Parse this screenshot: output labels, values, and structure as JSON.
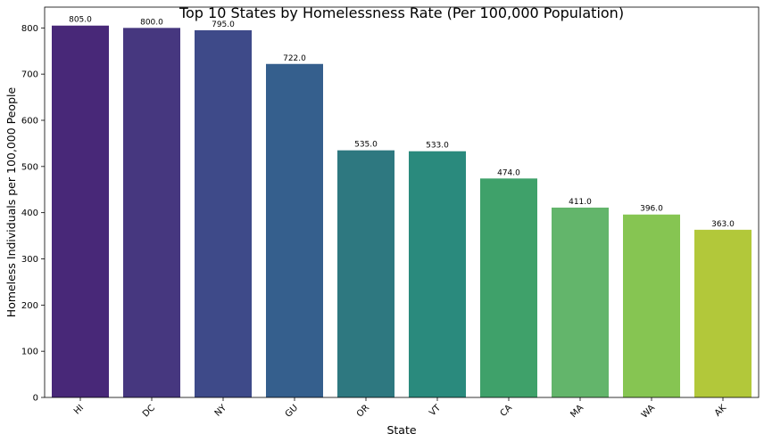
{
  "chart_data": {
    "type": "bar",
    "title": "Top 10 States by Homelessness Rate (Per 100,000 Population)",
    "xlabel": "State",
    "ylabel": "Homeless Individuals per 100,000 People",
    "categories": [
      "HI",
      "DC",
      "NY",
      "GU",
      "OR",
      "VT",
      "CA",
      "MA",
      "WA",
      "AK"
    ],
    "values": [
      805.0,
      800.0,
      795.0,
      722.0,
      535.0,
      533.0,
      474.0,
      411.0,
      396.0,
      363.0
    ],
    "data_labels": [
      "805.0",
      "800.0",
      "795.0",
      "722.0",
      "535.0",
      "533.0",
      "474.0",
      "411.0",
      "396.0",
      "363.0"
    ],
    "colors": [
      "#482878",
      "#46377f",
      "#3e4a89",
      "#355f8d",
      "#2e7880",
      "#2a8a7d",
      "#3fa16a",
      "#63b56b",
      "#86c552",
      "#b2c83a"
    ],
    "ylim": [
      0,
      845
    ],
    "yticks": [
      0,
      100,
      200,
      300,
      400,
      500,
      600,
      700,
      800
    ],
    "grid": false,
    "legend": "none"
  }
}
